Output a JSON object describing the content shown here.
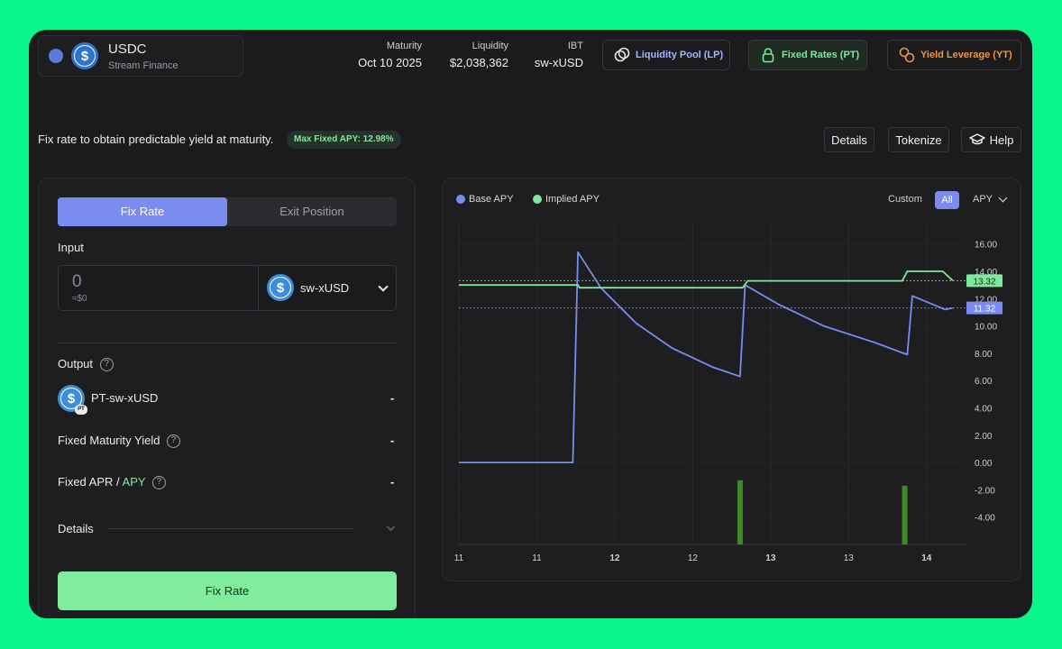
{
  "header": {
    "asset_name": "USDC",
    "asset_sub": "Stream Finance",
    "stats": [
      {
        "label": "Maturity",
        "value": "Oct 10 2025"
      },
      {
        "label": "Liquidity",
        "value": "$2,038,362"
      },
      {
        "label": "IBT",
        "value": "sw-xUSD"
      }
    ],
    "modes": [
      {
        "label": "Liquidity Pool (LP)",
        "color": "#a9b4ff"
      },
      {
        "label": "Fixed Rates (PT)",
        "color": "#7ee89d"
      },
      {
        "label": "Yield Leverage (YT)",
        "color": "#f0943f"
      }
    ]
  },
  "subheader": {
    "tagline": "Fix rate to obtain predictable yield at maturity.",
    "badge": "Max Fixed APY: 12.98%",
    "details_label": "Details",
    "tokenize_label": "Tokenize",
    "help_label": "Help"
  },
  "panel": {
    "tab_active": "Fix Rate",
    "tab_inactive": "Exit Position",
    "input_label": "Input",
    "input_value": "0",
    "input_usd": "≈$0",
    "token": "sw-xUSD",
    "output_label": "Output",
    "output_token": "PT-sw-xUSD",
    "output_value": "-",
    "pt_tag": "PT",
    "yield_label": "Fixed Maturity Yield",
    "yield_value": "-",
    "apr_label": "Fixed APR /",
    "apy_label": "APY",
    "apr_value": "-",
    "details_label": "Details",
    "fix_button": "Fix Rate",
    "help_glyph": "?"
  },
  "chart_controls": {
    "custom": "Custom",
    "all": "All",
    "metric": "APY"
  },
  "chart_data": {
    "type": "line",
    "x_tick_labels": [
      "11",
      "11",
      "12",
      "12",
      "13",
      "13",
      "14"
    ],
    "x_tick_bold": [
      false,
      false,
      true,
      false,
      true,
      false,
      true
    ],
    "y_ticks": [
      "16.00",
      "14.00",
      "12.00",
      "10.00",
      "8.00",
      "6.00",
      "4.00",
      "2.00",
      "0.00",
      "-2.00",
      "-4.00"
    ],
    "ylim": [
      -6,
      17.5
    ],
    "xlim": [
      0,
      10
    ],
    "series": [
      {
        "name": "Base APY",
        "color": "#7a8cf0",
        "points": [
          [
            0,
            0.0
          ],
          [
            2.25,
            0.0
          ],
          [
            2.35,
            15.4
          ],
          [
            2.8,
            12.8
          ],
          [
            3.5,
            10.2
          ],
          [
            4.2,
            8.4
          ],
          [
            5.0,
            7.0
          ],
          [
            5.55,
            6.3
          ],
          [
            5.65,
            13.0
          ],
          [
            6.3,
            11.6
          ],
          [
            7.2,
            10.0
          ],
          [
            8.2,
            8.8
          ],
          [
            8.85,
            7.9
          ],
          [
            8.95,
            12.2
          ],
          [
            9.6,
            11.2
          ],
          [
            9.75,
            11.32
          ]
        ]
      },
      {
        "name": "Implied APY",
        "color": "#7ee89d",
        "points": [
          [
            0,
            13.0
          ],
          [
            2.35,
            13.0
          ],
          [
            2.38,
            12.8
          ],
          [
            5.6,
            12.8
          ],
          [
            5.7,
            13.3
          ],
          [
            8.75,
            13.3
          ],
          [
            8.85,
            14.0
          ],
          [
            9.55,
            14.0
          ],
          [
            9.75,
            13.32
          ]
        ]
      }
    ],
    "current_labels": [
      {
        "series": "Implied APY",
        "value": "13.32",
        "y": 13.32
      },
      {
        "series": "Base APY",
        "value": "11.32",
        "y": 11.32
      }
    ],
    "bars": [
      {
        "x": 5.55,
        "y": -1.3
      },
      {
        "x": 8.8,
        "y": -1.7
      }
    ],
    "grid": true,
    "legend": "top-left"
  }
}
